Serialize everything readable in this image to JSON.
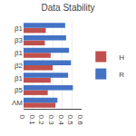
{
  "chart_data": {
    "type": "bar",
    "orientation": "horizontal",
    "title": "Data Stability",
    "categories": [
      "ΛM",
      "β5",
      "β1",
      "β2",
      "β1",
      "β3",
      "β1"
    ],
    "series": [
      {
        "name": "H",
        "color": "#c0504d",
        "values": [
          0.33,
          0.25,
          0.28,
          0.3,
          0.28,
          0.22,
          0.23
        ]
      },
      {
        "name": "R",
        "color": "#4472c4",
        "values": [
          0.35,
          0.51,
          0.46,
          0.49,
          0.47,
          0.44,
          0.43
        ]
      }
    ],
    "xlim": [
      0,
      0.6
    ],
    "xticks": [
      0,
      0.1,
      0.2,
      0.3,
      0.4,
      0.5,
      0.6
    ],
    "grid": true,
    "legend": "right"
  }
}
